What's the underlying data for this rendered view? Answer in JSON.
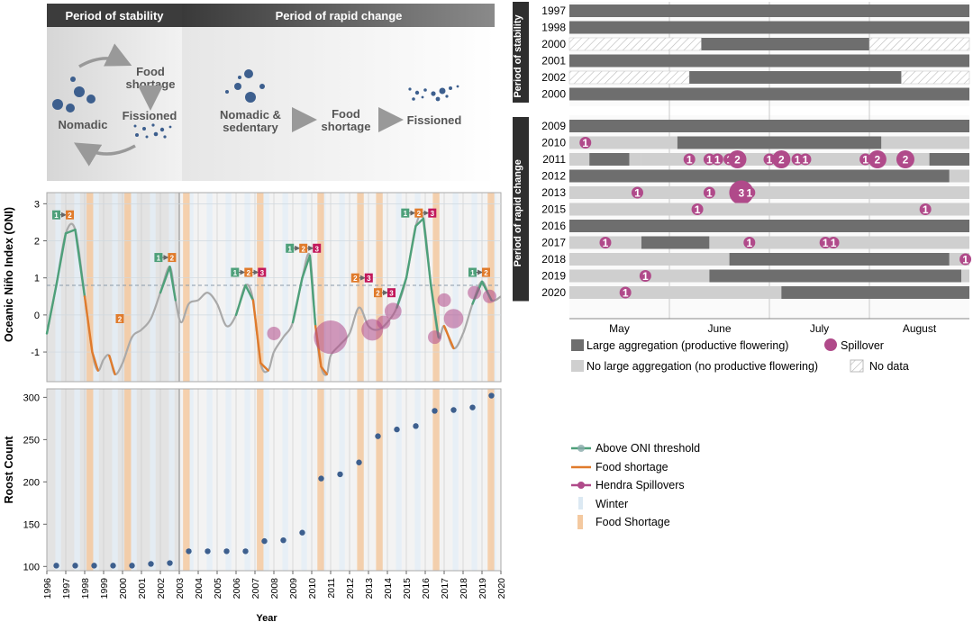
{
  "diagram": {
    "stability_header": "Period of stability",
    "rapid_header": "Period of rapid change",
    "food_shortage": "Food\nshortage",
    "fissioned": "Fissioned",
    "nomadic": "Nomadic",
    "nomadic_sedentary": "Nomadic &\nsedentary",
    "food_shortage_2": "Food\nshortage",
    "fissioned_2": "Fissioned"
  },
  "legend_left": {
    "items": [
      {
        "label": "Above ONI threshold",
        "color": "#4ea07a"
      },
      {
        "label": "Food shortage",
        "color": "#e07b2c"
      },
      {
        "label": "Hendra Spillovers",
        "color": "#b04a8a"
      },
      {
        "label": "Winter",
        "color": "#dce9f3"
      },
      {
        "label": "Food Shortage",
        "color": "#f4c9a0"
      }
    ]
  },
  "legend_right": {
    "items": [
      {
        "label": "Large aggregation (productive flowering)",
        "color": "#6e6e6e"
      },
      {
        "label": "Spillover",
        "color": "#b04a8a"
      },
      {
        "label": "No large aggregation (no productive flowering)",
        "color": "#cfcfcf"
      },
      {
        "label": "No data",
        "color": "#ffffff"
      }
    ]
  },
  "chart_data": [
    {
      "type": "line",
      "ylabel": "Oceanic Niño Index (ONI)",
      "ylim": [
        -1.8,
        3.3
      ],
      "yticks": [
        -1,
        0,
        1,
        2,
        3
      ],
      "threshold": 0.8,
      "x": [
        1996.0,
        1996.5,
        1997.0,
        1997.5,
        1998.0,
        1998.4,
        1998.7,
        1999.0,
        1999.3,
        1999.6,
        2000.0,
        2000.5,
        2001.0,
        2001.5,
        2002.0,
        2002.5,
        2002.8,
        2003.1,
        2003.5,
        2004.0,
        2004.5,
        2005.0,
        2005.5,
        2006.0,
        2006.5,
        2006.9,
        2007.3,
        2007.7,
        2008.0,
        2008.5,
        2009.0,
        2009.5,
        2009.9,
        2010.2,
        2010.5,
        2010.8,
        2011.0,
        2011.5,
        2012.0,
        2012.5,
        2013.0,
        2013.5,
        2014.0,
        2014.5,
        2015.0,
        2015.5,
        2015.9,
        2016.3,
        2016.7,
        2017.0,
        2017.5,
        2018.0,
        2018.5,
        2019.0,
        2019.5,
        2020.0
      ],
      "y": [
        -0.5,
        0.8,
        2.2,
        2.3,
        0.5,
        -1.0,
        -1.5,
        -1.2,
        -1.1,
        -1.6,
        -1.3,
        -0.6,
        -0.4,
        -0.1,
        0.6,
        1.3,
        0.4,
        -0.2,
        0.3,
        0.4,
        0.6,
        0.3,
        -0.3,
        0.0,
        0.8,
        0.4,
        -1.3,
        -1.5,
        -1.0,
        -0.6,
        -0.2,
        1.0,
        1.6,
        -0.3,
        -1.4,
        -1.6,
        -1.1,
        -0.8,
        -0.5,
        0.2,
        -0.3,
        -0.4,
        -0.2,
        0.2,
        1.0,
        2.4,
        2.6,
        0.8,
        -0.6,
        -0.3,
        -0.9,
        -0.5,
        0.3,
        0.9,
        0.4,
        0.5
      ],
      "spillovers": [
        {
          "x": 2008.0,
          "y": -0.5,
          "count": 1
        },
        {
          "x": 2011.0,
          "y": -0.6,
          "count": 12
        },
        {
          "x": 2013.2,
          "y": -0.4,
          "count": 4
        },
        {
          "x": 2013.8,
          "y": -0.2,
          "count": 1
        },
        {
          "x": 2014.3,
          "y": 0.1,
          "count": 2
        },
        {
          "x": 2016.5,
          "y": -0.6,
          "count": 1
        },
        {
          "x": 2017.0,
          "y": 0.4,
          "count": 1
        },
        {
          "x": 2017.5,
          "y": -0.1,
          "count": 3
        },
        {
          "x": 2018.6,
          "y": 0.6,
          "count": 1
        },
        {
          "x": 2019.4,
          "y": 0.5,
          "count": 1
        }
      ],
      "annotations": [
        {
          "x": 1997.0,
          "y": 2.7,
          "seq": [
            "1",
            "2"
          ]
        },
        {
          "x": 2000.0,
          "y": -0.1,
          "seq": [
            "2"
          ]
        },
        {
          "x": 2002.4,
          "y": 1.55,
          "seq": [
            "1",
            "2"
          ]
        },
        {
          "x": 2006.8,
          "y": 1.15,
          "seq": [
            "1",
            "2",
            "3"
          ]
        },
        {
          "x": 2009.7,
          "y": 1.8,
          "seq": [
            "1",
            "2",
            "3"
          ]
        },
        {
          "x": 2012.8,
          "y": 1.0,
          "seq": [
            "2",
            "3"
          ]
        },
        {
          "x": 2014.0,
          "y": 0.6,
          "seq": [
            "2",
            "3"
          ]
        },
        {
          "x": 2015.8,
          "y": 2.75,
          "seq": [
            "1",
            "2",
            "3"
          ]
        },
        {
          "x": 2019.0,
          "y": 1.15,
          "seq": [
            "1",
            "2"
          ]
        }
      ]
    },
    {
      "type": "scatter",
      "xlabel": "Year",
      "ylabel": "Roost Count",
      "ylim": [
        95,
        310
      ],
      "yticks": [
        100,
        150,
        200,
        250,
        300
      ],
      "x": [
        1996,
        1997,
        1998,
        1999,
        2000,
        2001,
        2002,
        2003,
        2004,
        2005,
        2006,
        2007,
        2008,
        2009,
        2010,
        2011,
        2012,
        2013,
        2014,
        2015,
        2016,
        2017,
        2018,
        2019
      ],
      "y": [
        101,
        101,
        101,
        101,
        101,
        103,
        104,
        118,
        118,
        118,
        118,
        130,
        131,
        140,
        204,
        209,
        223,
        254,
        262,
        266,
        284,
        285,
        288,
        302
      ],
      "xticks": [
        "1996",
        "1997",
        "1998",
        "1999",
        "2000",
        "2001",
        "2002",
        "2003",
        "2004",
        "2005",
        "2006",
        "2007",
        "2008",
        "2009",
        "2010",
        "2011",
        "2012",
        "2013",
        "2014",
        "2015",
        "2016",
        "2017",
        "2018",
        "2019",
        "2020"
      ]
    },
    {
      "type": "bar",
      "groups": [
        {
          "label": "Period of stability",
          "rows": [
            {
              "year": "1997",
              "segments": [
                [
                  0,
                  1,
                  "large"
                ]
              ],
              "spills": []
            },
            {
              "year": "1998",
              "segments": [
                [
                  0,
                  1,
                  "large"
                ]
              ],
              "spills": []
            },
            {
              "year": "2000",
              "segments": [
                [
                  0,
                  0.33,
                  "nodata"
                ],
                [
                  0.33,
                  0.75,
                  "large"
                ],
                [
                  0.75,
                  1,
                  "nodata"
                ]
              ],
              "spills": []
            },
            {
              "year": "2001",
              "segments": [
                [
                  0,
                  1,
                  "large"
                ]
              ],
              "spills": []
            },
            {
              "year": "2002",
              "segments": [
                [
                  0,
                  0.3,
                  "nodata"
                ],
                [
                  0.3,
                  0.83,
                  "large"
                ],
                [
                  0.83,
                  1,
                  "nodata"
                ]
              ],
              "spills": []
            },
            {
              "year": "2000",
              "segments": [
                [
                  0,
                  1,
                  "large"
                ]
              ],
              "spills": []
            }
          ]
        },
        {
          "label": "Period of rapid change",
          "rows": [
            {
              "year": "2009",
              "segments": [
                [
                  0,
                  1,
                  "large"
                ]
              ],
              "spills": []
            },
            {
              "year": "2010",
              "segments": [
                [
                  0,
                  0.27,
                  "none"
                ],
                [
                  0.27,
                  0.78,
                  "large"
                ],
                [
                  0.78,
                  1,
                  "none"
                ]
              ],
              "spills": [
                [
                  0.04,
                  1
                ]
              ]
            },
            {
              "year": "2011",
              "segments": [
                [
                  0,
                  0.05,
                  "none"
                ],
                [
                  0.05,
                  0.15,
                  "large"
                ],
                [
                  0.15,
                  0.18,
                  "none"
                ],
                [
                  0.18,
                  0.9,
                  "none"
                ],
                [
                  0.9,
                  1,
                  "large"
                ]
              ],
              "spills": [
                [
                  0.3,
                  1
                ],
                [
                  0.35,
                  1
                ],
                [
                  0.37,
                  1
                ],
                [
                  0.4,
                  1
                ],
                [
                  0.42,
                  2
                ],
                [
                  0.5,
                  1
                ],
                [
                  0.53,
                  2
                ],
                [
                  0.57,
                  1
                ],
                [
                  0.59,
                  1
                ],
                [
                  0.74,
                  1
                ],
                [
                  0.77,
                  2
                ],
                [
                  0.84,
                  2
                ]
              ]
            },
            {
              "year": "2012",
              "segments": [
                [
                  0,
                  0.95,
                  "large"
                ],
                [
                  0.95,
                  1,
                  "none"
                ]
              ],
              "spills": []
            },
            {
              "year": "2013",
              "segments": [
                [
                  0,
                  1,
                  "none"
                ]
              ],
              "spills": [
                [
                  0.17,
                  1
                ],
                [
                  0.35,
                  1
                ],
                [
                  0.43,
                  3
                ],
                [
                  0.45,
                  1
                ]
              ]
            },
            {
              "year": "2015",
              "segments": [
                [
                  0,
                  1,
                  "none"
                ]
              ],
              "spills": [
                [
                  0.32,
                  1
                ],
                [
                  0.89,
                  1
                ]
              ]
            },
            {
              "year": "2016",
              "segments": [
                [
                  0,
                  1,
                  "large"
                ]
              ],
              "spills": []
            },
            {
              "year": "2017",
              "segments": [
                [
                  0,
                  0.18,
                  "none"
                ],
                [
                  0.18,
                  0.35,
                  "large"
                ],
                [
                  0.35,
                  1,
                  "none"
                ]
              ],
              "spills": [
                [
                  0.09,
                  1
                ],
                [
                  0.45,
                  1
                ],
                [
                  0.64,
                  1
                ],
                [
                  0.66,
                  1
                ]
              ]
            },
            {
              "year": "2018",
              "segments": [
                [
                  0,
                  0.4,
                  "none"
                ],
                [
                  0.4,
                  0.95,
                  "large"
                ],
                [
                  0.95,
                  1,
                  "none"
                ]
              ],
              "spills": [
                [
                  0.99,
                  1
                ]
              ]
            },
            {
              "year": "2019",
              "segments": [
                [
                  0,
                  0.35,
                  "none"
                ],
                [
                  0.35,
                  0.98,
                  "large"
                ],
                [
                  0.98,
                  1,
                  "none"
                ]
              ],
              "spills": [
                [
                  0.19,
                  1
                ]
              ]
            },
            {
              "year": "2020",
              "segments": [
                [
                  0,
                  0.53,
                  "none"
                ],
                [
                  0.53,
                  1,
                  "large"
                ]
              ],
              "spills": [
                [
                  0.14,
                  1
                ]
              ]
            }
          ]
        }
      ],
      "xticks": [
        "May",
        "June",
        "July",
        "August"
      ]
    }
  ]
}
